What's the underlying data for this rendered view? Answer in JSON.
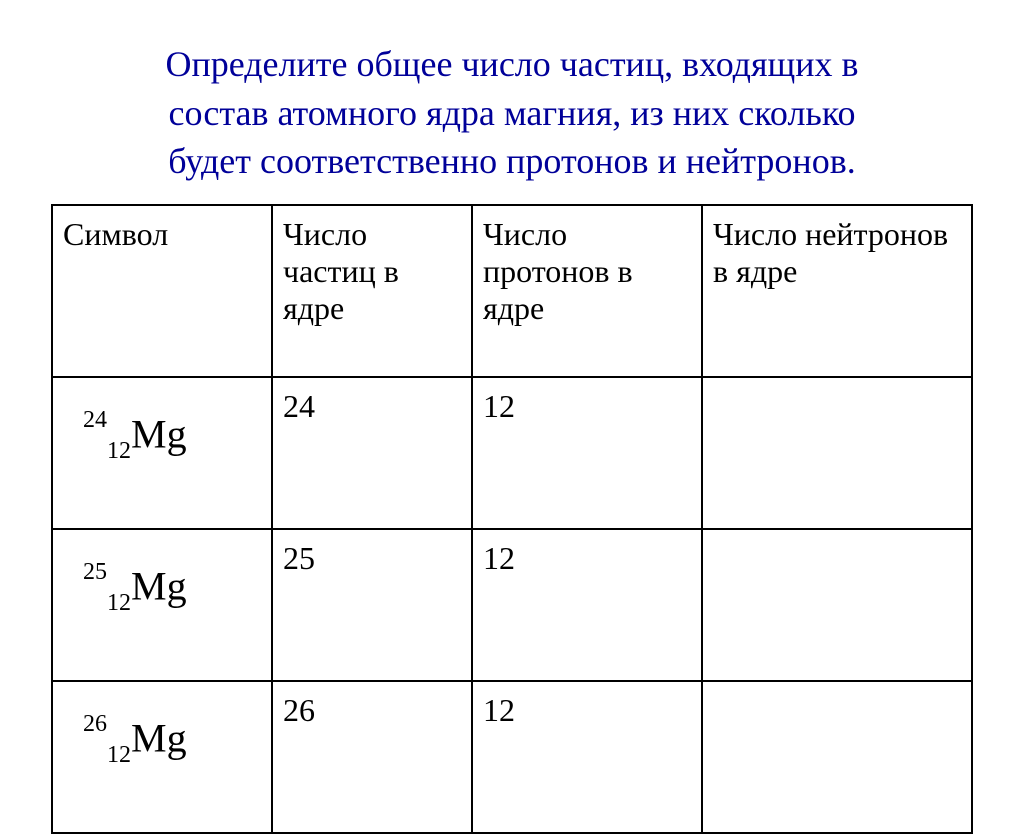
{
  "title_color": "#000099",
  "border_color": "#000000",
  "text_color": "#000000",
  "background_color": "#ffffff",
  "title_lines": [
    "Определите общее число частиц, входящих в",
    "состав атомного ядра магния, из них сколько",
    "будет соответственно  протонов и нейтронов."
  ],
  "table": {
    "headers": {
      "symbol": "Символ",
      "particles": "Число частиц в ядре",
      "protons": "Число протонов в ядре",
      "neutrons": "Число нейтронов в ядре"
    },
    "rows": [
      {
        "mass": "24",
        "z": "12",
        "element": "Mg",
        "particles": "24",
        "protons": "12",
        "neutrons": ""
      },
      {
        "mass": "25",
        "z": "12",
        "element": "Mg",
        "particles": "25",
        "protons": "12",
        "neutrons": ""
      },
      {
        "mass": "26",
        "z": "12",
        "element": "Mg",
        "particles": "26",
        "protons": "12",
        "neutrons": ""
      }
    ]
  }
}
